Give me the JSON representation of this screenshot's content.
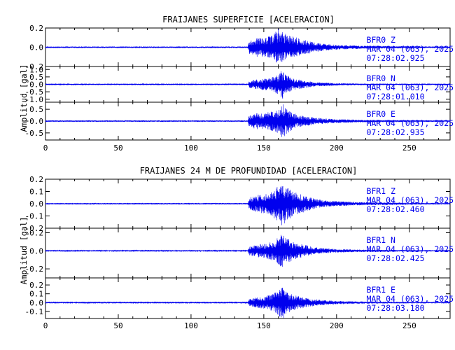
{
  "chart_data": [
    {
      "type": "line",
      "title": "FRAIJANES SUPERFICIE [ACELERACION]",
      "ylabel": "Amplitud [gal]",
      "xlim": [
        0,
        278
      ],
      "xticks": [
        0,
        50,
        100,
        150,
        200,
        250
      ],
      "series_color": "#0000ee",
      "panels": [
        {
          "name": "BFR0 Z",
          "station": "BFR0",
          "component": "Z",
          "date": "MAR 04 (063), 2025",
          "time": "07:28:02.925",
          "ylim": [
            -0.2,
            0.2
          ],
          "yticks": [
            "0.2",
            "0.0",
            "-0.2"
          ],
          "x": [
            0,
            139,
            140,
            145,
            150,
            155,
            160,
            163,
            165,
            170,
            175,
            180,
            185,
            190,
            200,
            220,
            278
          ],
          "envelope": [
            0.008,
            0.008,
            0.07,
            0.1,
            0.1,
            0.12,
            0.2,
            0.16,
            0.14,
            0.12,
            0.09,
            0.07,
            0.05,
            0.04,
            0.025,
            0.015,
            0.008
          ]
        },
        {
          "name": "BFR0 N",
          "station": "BFR0",
          "component": "N",
          "date": "MAR 04 (063), 2025",
          "time": "07:28:01.010",
          "ylim": [
            -1.2,
            1.2
          ],
          "yticks": [
            "1.0",
            "0.5",
            "0.0",
            "-0.5",
            "-1.0"
          ],
          "x": [
            0,
            139,
            140,
            145,
            150,
            155,
            160,
            163,
            165,
            170,
            175,
            180,
            185,
            190,
            200,
            220,
            278
          ],
          "envelope": [
            0.04,
            0.04,
            0.25,
            0.35,
            0.4,
            0.45,
            0.75,
            1.0,
            0.7,
            0.4,
            0.3,
            0.22,
            0.15,
            0.12,
            0.08,
            0.05,
            0.04
          ]
        },
        {
          "name": "BFR0 E",
          "station": "BFR0",
          "component": "E",
          "date": "MAR 04 (063), 2025",
          "time": "07:28:02.935",
          "ylim": [
            -0.8,
            0.8
          ],
          "yticks": [
            "0.5",
            "0.0",
            "-0.5"
          ],
          "x": [
            0,
            139,
            140,
            145,
            150,
            155,
            160,
            163,
            165,
            170,
            175,
            180,
            185,
            190,
            200,
            220,
            278
          ],
          "envelope": [
            0.03,
            0.03,
            0.25,
            0.35,
            0.35,
            0.4,
            0.55,
            0.75,
            0.6,
            0.35,
            0.25,
            0.2,
            0.15,
            0.12,
            0.08,
            0.05,
            0.03
          ]
        }
      ]
    },
    {
      "type": "line",
      "title": "FRAIJANES 24 M DE PROFUNDIDAD [ACELERACION]",
      "ylabel": "Amplitud [gal]",
      "xlim": [
        0,
        278
      ],
      "xticks": [
        0,
        50,
        100,
        150,
        200,
        250
      ],
      "series_color": "#0000ee",
      "panels": [
        {
          "name": "BFR1 Z",
          "station": "BFR1",
          "component": "Z",
          "date": "MAR 04 (063), 2025",
          "time": "07:28:02.460",
          "ylim": [
            -0.2,
            0.2
          ],
          "yticks": [
            "0.2",
            "0.1",
            "0.0",
            "-0.1",
            "-0.2"
          ],
          "x": [
            0,
            139,
            140,
            145,
            150,
            155,
            160,
            163,
            165,
            170,
            175,
            180,
            185,
            190,
            200,
            220,
            278
          ],
          "envelope": [
            0.006,
            0.006,
            0.05,
            0.07,
            0.08,
            0.1,
            0.15,
            0.2,
            0.15,
            0.1,
            0.08,
            0.06,
            0.04,
            0.03,
            0.02,
            0.012,
            0.006
          ]
        },
        {
          "name": "BFR1 N",
          "station": "BFR1",
          "component": "N",
          "date": "MAR 04 (063), 2025",
          "time": "07:28:02.425",
          "ylim": [
            -0.3,
            0.25
          ],
          "yticks": [
            "0.2",
            "0.0",
            "-0.2"
          ],
          "x": [
            0,
            139,
            140,
            145,
            150,
            155,
            160,
            163,
            165,
            170,
            175,
            180,
            185,
            190,
            200,
            220,
            278
          ],
          "envelope": [
            0.005,
            0.005,
            0.05,
            0.07,
            0.08,
            0.1,
            0.16,
            0.2,
            0.15,
            0.1,
            0.08,
            0.06,
            0.04,
            0.03,
            0.02,
            0.012,
            0.005
          ]
        },
        {
          "name": "BFR1 E",
          "station": "BFR1",
          "component": "E",
          "date": "MAR 04 (063), 2025",
          "time": "07:28:03.180",
          "ylim": [
            -0.18,
            0.28
          ],
          "yticks": [
            "0.2",
            "0.1",
            "0.0",
            "-0.1"
          ],
          "x": [
            0,
            139,
            140,
            145,
            150,
            155,
            160,
            163,
            165,
            170,
            175,
            180,
            185,
            190,
            200,
            220,
            278
          ],
          "envelope": [
            0.005,
            0.005,
            0.04,
            0.06,
            0.07,
            0.09,
            0.14,
            0.2,
            0.13,
            0.09,
            0.07,
            0.05,
            0.04,
            0.03,
            0.02,
            0.012,
            0.005
          ]
        }
      ]
    }
  ]
}
